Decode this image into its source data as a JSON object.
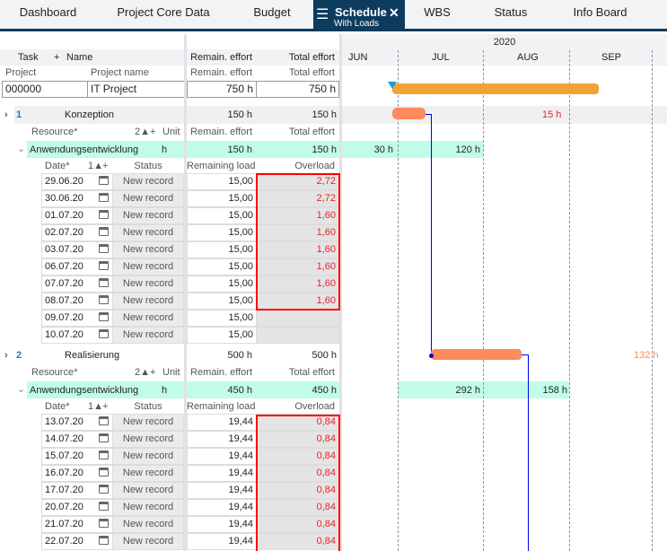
{
  "tabs": [
    {
      "label": "Dashboard"
    },
    {
      "label": "Project Core Data"
    },
    {
      "label": "Budget"
    },
    {
      "label": "Schedule",
      "sublabel": "With Loads",
      "active": true
    },
    {
      "label": "WBS"
    },
    {
      "label": "Status"
    },
    {
      "label": "Info Board"
    }
  ],
  "header": {
    "task": "Task",
    "plus": "+",
    "name": "Name",
    "remain": "Remain. effort",
    "total": "Total effort"
  },
  "project": {
    "label_project": "Project",
    "label_name": "Project name",
    "label_remain": "Remain. effort",
    "label_total": "Total effort",
    "id": "000000",
    "name": "IT Project",
    "remain": "750 h",
    "total": "750 h"
  },
  "timeline": {
    "year": "2020",
    "months": [
      "JUN",
      "JUL",
      "AUG",
      "SEP"
    ]
  },
  "colors": {
    "project_bar": "#f4a236",
    "task_bar": "#ff8a5c",
    "resource_band": "#c0fce8",
    "tab_active": "#0d3b5e",
    "overload": "#e8222a",
    "link": "#0000ee"
  },
  "resource_header": {
    "resource": "Resource*",
    "sort": "2▲",
    "plus": "+",
    "unit": "Unit",
    "remain": "Remain. effort",
    "total": "Total effort"
  },
  "load_header": {
    "date": "Date*",
    "sort": "1▲",
    "plus": "+",
    "status": "Status",
    "remaining": "Remaining load",
    "overload": "Overload"
  },
  "tasks": [
    {
      "num": "1",
      "name": "Konzeption",
      "remain": "150 h",
      "total": "150 h",
      "gantt_label": "15 h",
      "resource": {
        "name": "Anwendungsentwicklung",
        "unit": "h",
        "remain": "150 h",
        "total": "150 h",
        "loads": [
          "30 h",
          "120 h"
        ]
      },
      "rows": [
        [
          "29.06.20",
          "New record",
          "15,00",
          "2,72"
        ],
        [
          "30.06.20",
          "New record",
          "15,00",
          "2,72"
        ],
        [
          "01.07.20",
          "New record",
          "15,00",
          "1,60"
        ],
        [
          "02.07.20",
          "New record",
          "15,00",
          "1,60"
        ],
        [
          "03.07.20",
          "New record",
          "15,00",
          "1,60"
        ],
        [
          "06.07.20",
          "New record",
          "15,00",
          "1,60"
        ],
        [
          "07.07.20",
          "New record",
          "15,00",
          "1,60"
        ],
        [
          "08.07.20",
          "New record",
          "15,00",
          "1,60"
        ],
        [
          "09.07.20",
          "New record",
          "15,00",
          ""
        ],
        [
          "10.07.20",
          "New record",
          "15,00",
          ""
        ]
      ]
    },
    {
      "num": "2",
      "name": "Realisierung",
      "remain": "500 h",
      "total": "500 h",
      "gantt_label": "132 h",
      "resource": {
        "name": "Anwendungsentwicklung",
        "unit": "h",
        "remain": "450 h",
        "total": "450 h",
        "loads": [
          "292 h",
          "158 h"
        ]
      },
      "rows": [
        [
          "13.07.20",
          "New record",
          "19,44",
          "0,84"
        ],
        [
          "14.07.20",
          "New record",
          "19,44",
          "0,84"
        ],
        [
          "15.07.20",
          "New record",
          "19,44",
          "0,84"
        ],
        [
          "16.07.20",
          "New record",
          "19,44",
          "0,84"
        ],
        [
          "17.07.20",
          "New record",
          "19,44",
          "0,84"
        ],
        [
          "20.07.20",
          "New record",
          "19,44",
          "0,84"
        ],
        [
          "21.07.20",
          "New record",
          "19,44",
          "0,84"
        ],
        [
          "22.07.20",
          "New record",
          "19,44",
          "0,84"
        ]
      ]
    }
  ]
}
